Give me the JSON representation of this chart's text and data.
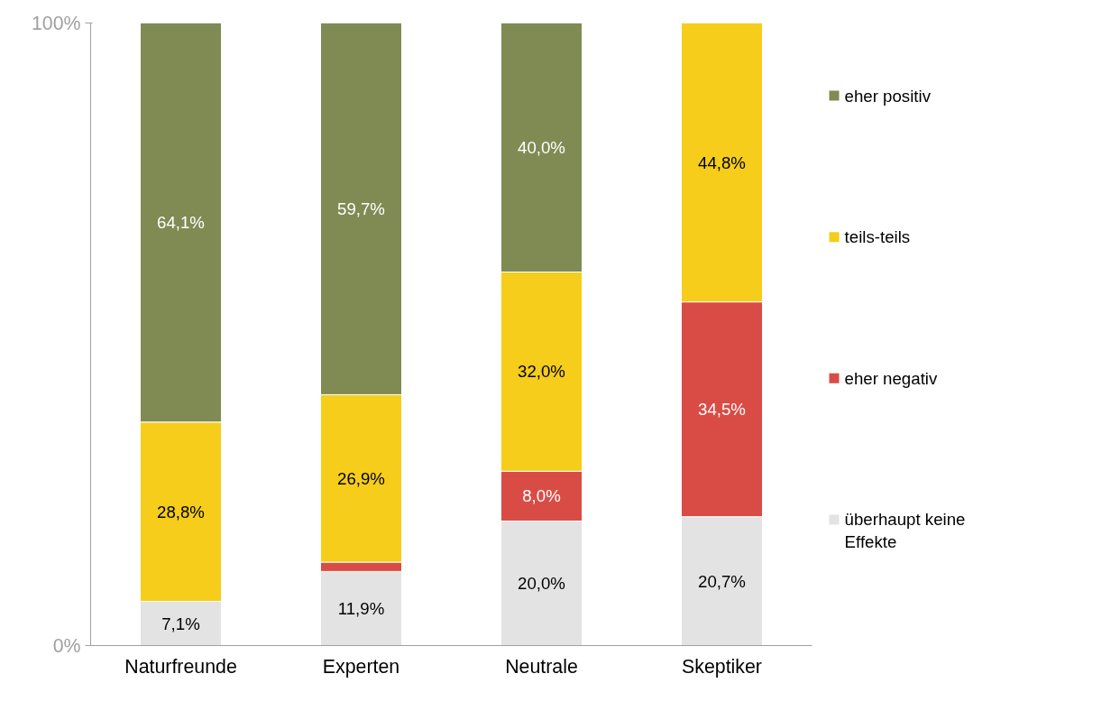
{
  "chart_data": {
    "type": "bar",
    "stacked": true,
    "categories": [
      "Naturfreunde",
      "Experten",
      "Neutrale",
      "Skeptiker"
    ],
    "series": [
      {
        "name": "überhaupt keine Effekte",
        "color": "#e3e3e3",
        "values": [
          7.1,
          11.9,
          20.0,
          20.7
        ],
        "value_labels": [
          "7,1%",
          "11,9%",
          "20,0%",
          "20,7%"
        ]
      },
      {
        "name": "eher negativ",
        "color": "#d94c45",
        "values": [
          null,
          1.5,
          8.0,
          34.5
        ],
        "value_labels": [
          null,
          null,
          "8,0%",
          "34,5%"
        ]
      },
      {
        "name": "teils-teils",
        "color": "#f5cd1a",
        "values": [
          28.8,
          26.9,
          32.0,
          44.8
        ],
        "value_labels": [
          "28,8%",
          "26,9%",
          "32,0%",
          "44,8%"
        ]
      },
      {
        "name": "eher positiv",
        "color": "#808b54",
        "values": [
          64.1,
          59.7,
          40.0,
          null
        ],
        "value_labels": [
          "64,1%",
          "59,7%",
          "40,0%",
          null
        ]
      }
    ],
    "ylim": [
      0,
      100
    ],
    "yticks": [
      {
        "value": 0,
        "label": "0%"
      },
      {
        "value": 100,
        "label": "100%"
      }
    ],
    "legend": "right"
  }
}
